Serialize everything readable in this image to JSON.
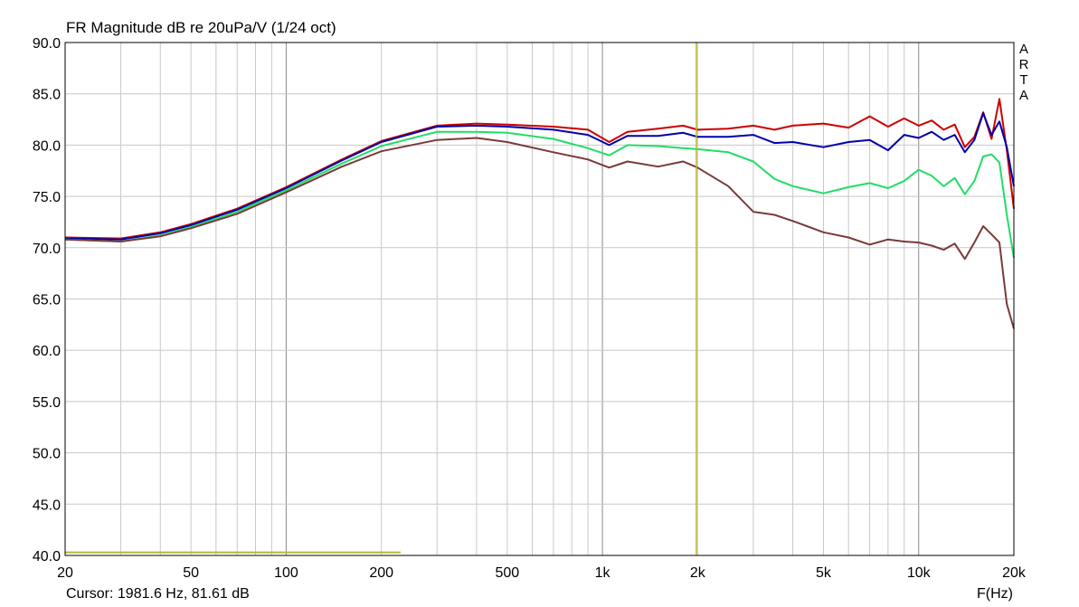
{
  "chart_data": {
    "type": "line",
    "title": "FR Magnitude dB re 20uPa/V (1/24 oct)",
    "xlabel": "F(Hz)",
    "x_scale": "log",
    "xlim": [
      20,
      20000
    ],
    "ylim": [
      40,
      90
    ],
    "x_ticks": [
      {
        "value": 20,
        "label": "20"
      },
      {
        "value": 50,
        "label": "50"
      },
      {
        "value": 100,
        "label": "100"
      },
      {
        "value": 200,
        "label": "200"
      },
      {
        "value": 500,
        "label": "500"
      },
      {
        "value": 1000,
        "label": "1k"
      },
      {
        "value": 2000,
        "label": "2k"
      },
      {
        "value": 5000,
        "label": "5k"
      },
      {
        "value": 10000,
        "label": "10k"
      },
      {
        "value": 20000,
        "label": "20k"
      }
    ],
    "y_ticks": [
      "90.0",
      "85.0",
      "80.0",
      "75.0",
      "70.0",
      "65.0",
      "60.0",
      "55.0",
      "50.0",
      "45.0",
      "40.0"
    ],
    "grid": true,
    "cursor_freq": 1981.6,
    "cursor_text": "Cursor: 1981.6 Hz, 81.61 dB",
    "cursor_color": "#b8b830",
    "marker_segment": {
      "x": [
        20,
        230
      ],
      "y": 40.3
    },
    "series": [
      {
        "color": "#cc0000",
        "x": [
          20,
          30,
          40,
          50,
          70,
          100,
          150,
          200,
          300,
          400,
          500,
          700,
          900,
          1050,
          1200,
          1500,
          1800,
          2000,
          2500,
          3000,
          3500,
          4000,
          5000,
          6000,
          7000,
          8000,
          9000,
          10000,
          11000,
          12000,
          13000,
          14000,
          15000,
          16000,
          17000,
          18000,
          19000,
          20000
        ],
        "y": [
          71.0,
          70.9,
          71.5,
          72.3,
          73.8,
          75.9,
          78.6,
          80.4,
          81.9,
          82.1,
          82.0,
          81.8,
          81.5,
          80.3,
          81.3,
          81.6,
          81.9,
          81.5,
          81.6,
          81.9,
          81.5,
          81.9,
          82.1,
          81.7,
          82.8,
          81.8,
          82.6,
          81.9,
          82.4,
          81.5,
          82.0,
          79.8,
          80.8,
          83.2,
          80.6,
          84.5,
          79.5,
          73.8
        ]
      },
      {
        "color": "#0000aa",
        "x": [
          20,
          30,
          40,
          50,
          70,
          100,
          150,
          200,
          300,
          400,
          500,
          700,
          900,
          1050,
          1200,
          1500,
          1800,
          2000,
          2500,
          3000,
          3500,
          4000,
          5000,
          6000,
          7000,
          8000,
          9000,
          10000,
          11000,
          12000,
          13000,
          14000,
          15000,
          16000,
          17000,
          18000,
          19000,
          20000
        ],
        "y": [
          70.9,
          70.8,
          71.4,
          72.2,
          73.7,
          75.8,
          78.5,
          80.3,
          81.8,
          81.9,
          81.8,
          81.5,
          81.0,
          80.0,
          80.9,
          80.9,
          81.2,
          80.8,
          80.8,
          81.0,
          80.2,
          80.3,
          79.8,
          80.3,
          80.5,
          79.5,
          81.0,
          80.7,
          81.3,
          80.5,
          81.0,
          79.3,
          80.5,
          83.1,
          81.0,
          82.3,
          79.8,
          76.0
        ]
      },
      {
        "color": "#22dd66",
        "x": [
          20,
          30,
          40,
          50,
          70,
          100,
          150,
          200,
          300,
          400,
          500,
          700,
          900,
          1050,
          1200,
          1500,
          1800,
          2000,
          2500,
          3000,
          3500,
          4000,
          5000,
          6000,
          7000,
          8000,
          9000,
          10000,
          11000,
          12000,
          13000,
          14000,
          15000,
          16000,
          17000,
          18000,
          19000,
          20000
        ],
        "y": [
          70.8,
          70.6,
          71.2,
          72.0,
          73.5,
          75.6,
          78.2,
          79.9,
          81.3,
          81.3,
          81.2,
          80.6,
          79.7,
          79.0,
          80.0,
          79.9,
          79.7,
          79.6,
          79.3,
          78.4,
          76.7,
          76.0,
          75.3,
          75.9,
          76.3,
          75.8,
          76.5,
          77.6,
          77.0,
          76.0,
          76.8,
          75.2,
          76.5,
          78.9,
          79.1,
          78.3,
          73.2,
          69.0
        ]
      },
      {
        "color": "#7a3a3a",
        "x": [
          20,
          30,
          40,
          50,
          70,
          100,
          150,
          200,
          300,
          400,
          500,
          700,
          900,
          1050,
          1200,
          1500,
          1800,
          2000,
          2500,
          3000,
          3500,
          4000,
          5000,
          6000,
          7000,
          8000,
          9000,
          10000,
          11000,
          12000,
          13000,
          14000,
          15000,
          16000,
          17000,
          18000,
          19000,
          20000
        ],
        "y": [
          70.8,
          70.6,
          71.1,
          71.9,
          73.3,
          75.4,
          77.9,
          79.4,
          80.5,
          80.7,
          80.3,
          79.3,
          78.6,
          77.8,
          78.4,
          77.9,
          78.4,
          77.8,
          76.0,
          73.5,
          73.2,
          72.6,
          71.5,
          71.0,
          70.3,
          70.8,
          70.6,
          70.5,
          70.2,
          69.8,
          70.4,
          68.9,
          70.5,
          72.1,
          71.3,
          70.5,
          64.5,
          62.1
        ]
      }
    ]
  },
  "labels": {
    "title": "FR Magnitude dB re 20uPa/V (1/24 oct)",
    "cursor": "Cursor: 1981.6 Hz, 81.61 dB",
    "xunit": "F(Hz)",
    "brand_letters": [
      "A",
      "R",
      "T",
      "A"
    ]
  }
}
